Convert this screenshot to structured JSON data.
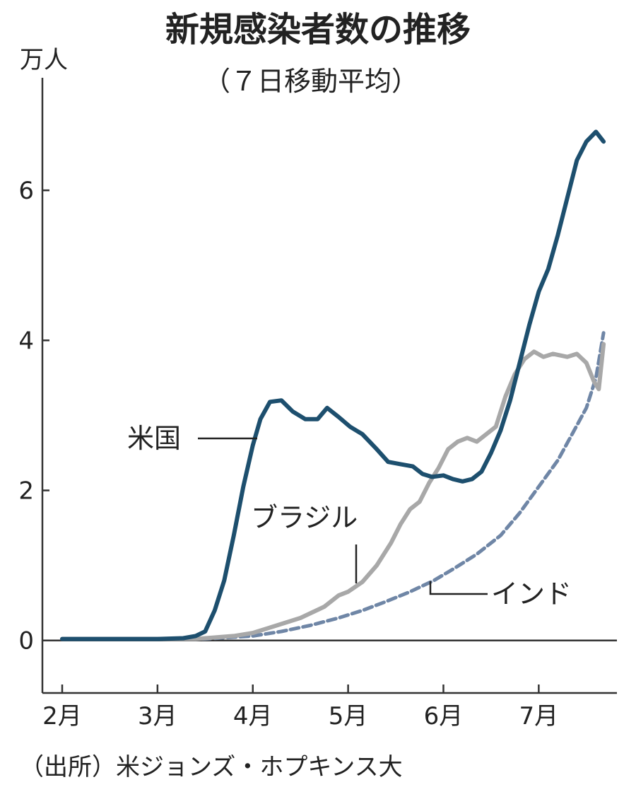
{
  "chart_data": {
    "type": "line",
    "title": "新規感染者数の推移",
    "subtitle": "（７日移動平均）",
    "ylabel": "万人",
    "ylim": [
      -0.7,
      7.5
    ],
    "yticks": [
      0,
      2,
      4,
      6
    ],
    "xlim": [
      0,
      5.85
    ],
    "x_ticks": [
      {
        "label": "2月",
        "x": 0
      },
      {
        "label": "3月",
        "x": 1
      },
      {
        "label": "4月",
        "x": 2
      },
      {
        "label": "5月",
        "x": 3
      },
      {
        "label": "6月",
        "x": 4
      },
      {
        "label": "7月",
        "x": 5
      }
    ],
    "source": "（出所）米ジョンズ・ホプキンス大",
    "grid": false,
    "legend": "inline labels",
    "series": [
      {
        "name": "米国",
        "color": "#1d4f6e",
        "style": "solid",
        "points": [
          [
            0,
            0.02
          ],
          [
            1.0,
            0.02
          ],
          [
            1.27,
            0.03
          ],
          [
            1.4,
            0.06
          ],
          [
            1.5,
            0.12
          ],
          [
            1.6,
            0.4
          ],
          [
            1.7,
            0.8
          ],
          [
            1.8,
            1.4
          ],
          [
            1.9,
            2.05
          ],
          [
            2.0,
            2.6
          ],
          [
            2.08,
            2.95
          ],
          [
            2.18,
            3.18
          ],
          [
            2.3,
            3.2
          ],
          [
            2.42,
            3.05
          ],
          [
            2.55,
            2.95
          ],
          [
            2.68,
            2.95
          ],
          [
            2.78,
            3.1
          ],
          [
            2.9,
            2.98
          ],
          [
            3.02,
            2.85
          ],
          [
            3.15,
            2.75
          ],
          [
            3.3,
            2.55
          ],
          [
            3.42,
            2.38
          ],
          [
            3.55,
            2.35
          ],
          [
            3.68,
            2.32
          ],
          [
            3.78,
            2.22
          ],
          [
            3.88,
            2.18
          ],
          [
            4.0,
            2.2
          ],
          [
            4.1,
            2.15
          ],
          [
            4.2,
            2.12
          ],
          [
            4.3,
            2.15
          ],
          [
            4.4,
            2.25
          ],
          [
            4.5,
            2.5
          ],
          [
            4.6,
            2.8
          ],
          [
            4.7,
            3.2
          ],
          [
            4.8,
            3.7
          ],
          [
            4.9,
            4.2
          ],
          [
            5.0,
            4.65
          ],
          [
            5.1,
            4.95
          ],
          [
            5.2,
            5.4
          ],
          [
            5.3,
            5.9
          ],
          [
            5.4,
            6.4
          ],
          [
            5.5,
            6.65
          ],
          [
            5.6,
            6.78
          ],
          [
            5.68,
            6.65
          ]
        ]
      },
      {
        "name": "ブラジル",
        "color": "#a8a8a8",
        "style": "solid",
        "points": [
          [
            0,
            0.02
          ],
          [
            1.4,
            0.02
          ],
          [
            1.8,
            0.06
          ],
          [
            2.0,
            0.1
          ],
          [
            2.25,
            0.2
          ],
          [
            2.5,
            0.3
          ],
          [
            2.75,
            0.45
          ],
          [
            2.9,
            0.6
          ],
          [
            3.0,
            0.65
          ],
          [
            3.15,
            0.78
          ],
          [
            3.3,
            1.0
          ],
          [
            3.45,
            1.3
          ],
          [
            3.55,
            1.55
          ],
          [
            3.65,
            1.75
          ],
          [
            3.75,
            1.85
          ],
          [
            3.85,
            2.1
          ],
          [
            3.95,
            2.3
          ],
          [
            4.05,
            2.55
          ],
          [
            4.15,
            2.65
          ],
          [
            4.25,
            2.7
          ],
          [
            4.35,
            2.65
          ],
          [
            4.45,
            2.75
          ],
          [
            4.55,
            2.85
          ],
          [
            4.65,
            3.25
          ],
          [
            4.75,
            3.55
          ],
          [
            4.85,
            3.75
          ],
          [
            4.95,
            3.85
          ],
          [
            5.05,
            3.78
          ],
          [
            5.15,
            3.82
          ],
          [
            5.3,
            3.78
          ],
          [
            5.4,
            3.82
          ],
          [
            5.5,
            3.7
          ],
          [
            5.58,
            3.45
          ],
          [
            5.63,
            3.35
          ],
          [
            5.68,
            3.95
          ]
        ]
      },
      {
        "name": "インド",
        "color": "#6f86a6",
        "style": "dashed",
        "points": [
          [
            0,
            0.02
          ],
          [
            1.5,
            0.02
          ],
          [
            2.0,
            0.06
          ],
          [
            2.3,
            0.12
          ],
          [
            2.6,
            0.2
          ],
          [
            2.9,
            0.3
          ],
          [
            3.15,
            0.4
          ],
          [
            3.4,
            0.52
          ],
          [
            3.65,
            0.65
          ],
          [
            3.9,
            0.8
          ],
          [
            4.1,
            0.95
          ],
          [
            4.35,
            1.15
          ],
          [
            4.6,
            1.4
          ],
          [
            4.8,
            1.7
          ],
          [
            5.0,
            2.05
          ],
          [
            5.2,
            2.4
          ],
          [
            5.35,
            2.75
          ],
          [
            5.5,
            3.1
          ],
          [
            5.6,
            3.5
          ],
          [
            5.68,
            4.1
          ]
        ]
      }
    ]
  }
}
